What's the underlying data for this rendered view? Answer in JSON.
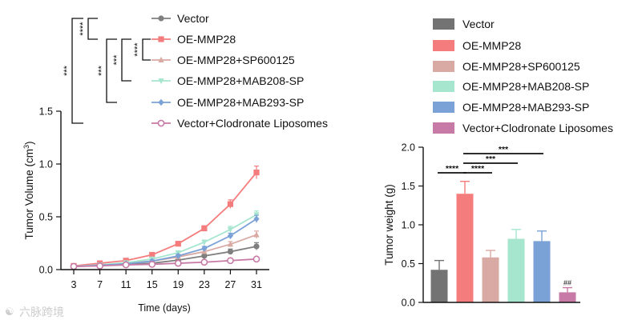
{
  "watermark": "六脉跨境",
  "chart_data": [
    {
      "type": "line",
      "xlabel": "Time (days)",
      "ylabel": "Tumor Volume (cm³)",
      "ylabel_main": "Tumor Volume (cm",
      "ylabel_sup": "3",
      "ylabel_end": ")",
      "x": [
        3,
        7,
        11,
        15,
        19,
        23,
        27,
        31
      ],
      "xticks": [
        "3",
        "7",
        "11",
        "15",
        "19",
        "23",
        "27",
        "31"
      ],
      "ylim": [
        0,
        1.5
      ],
      "yticks": [
        0,
        0.5,
        1.0,
        1.5
      ],
      "yticklabels": [
        "0.0",
        "0.5",
        "1.0",
        "1.5"
      ],
      "legend_position": "top",
      "series": [
        {
          "name": "Vector",
          "color": "#7f7f7f",
          "marker": "circle",
          "values": [
            0.03,
            0.04,
            0.05,
            0.06,
            0.09,
            0.13,
            0.17,
            0.22
          ],
          "errors": [
            0.008,
            0.01,
            0.01,
            0.012,
            0.015,
            0.02,
            0.025,
            0.035
          ]
        },
        {
          "name": "OE-MMP28",
          "color": "#f47c7c",
          "marker": "square",
          "values": [
            0.035,
            0.06,
            0.085,
            0.14,
            0.245,
            0.39,
            0.62,
            0.92
          ],
          "errors": [
            0.008,
            0.01,
            0.012,
            0.015,
            0.02,
            0.025,
            0.04,
            0.06
          ]
        },
        {
          "name": "OE-MMP28+SP600125",
          "color": "#d9aaa3",
          "marker": "triangle-up",
          "values": [
            0.03,
            0.045,
            0.06,
            0.08,
            0.12,
            0.17,
            0.24,
            0.33
          ],
          "errors": [
            0.008,
            0.01,
            0.01,
            0.012,
            0.015,
            0.02,
            0.025,
            0.035
          ]
        },
        {
          "name": "OE-MMP28+MAB208-SP",
          "color": "#a6e6cf",
          "marker": "triangle-down",
          "values": [
            0.03,
            0.045,
            0.065,
            0.1,
            0.16,
            0.26,
            0.38,
            0.52
          ],
          "errors": [
            0.008,
            0.01,
            0.01,
            0.012,
            0.015,
            0.02,
            0.03,
            0.035
          ]
        },
        {
          "name": "OE-MMP28+MAB293-SP",
          "color": "#7ba2d6",
          "marker": "diamond",
          "values": [
            0.03,
            0.04,
            0.055,
            0.08,
            0.13,
            0.2,
            0.32,
            0.48
          ],
          "errors": [
            0.008,
            0.01,
            0.01,
            0.012,
            0.015,
            0.02,
            0.025,
            0.035
          ]
        },
        {
          "name": "Vector+Clodronate Liposomes",
          "color": "#c77aa5",
          "marker": "open-circle",
          "values": [
            0.03,
            0.035,
            0.045,
            0.05,
            0.06,
            0.07,
            0.085,
            0.1
          ],
          "errors": [
            0.006,
            0.008,
            0.008,
            0.01,
            0.01,
            0.012,
            0.015,
            0.02
          ]
        }
      ],
      "significance": [
        "****",
        "****",
        "***",
        "***",
        "***"
      ]
    },
    {
      "type": "bar",
      "ylabel": "Tumor weight (g)",
      "ylim": [
        0,
        2.0
      ],
      "yticks": [
        0,
        0.5,
        1.0,
        1.5,
        2.0
      ],
      "yticklabels": [
        "0.0",
        "0.5",
        "1.0",
        "1.5",
        "2.0"
      ],
      "legend_position": "top",
      "categories": [
        "Vector",
        "OE-MMP28",
        "OE-MMP28+SP600125",
        "OE-MMP28+MAB208-SP",
        "OE-MMP28+MAB293-SP",
        "Vector+Clodronate Liposomes"
      ],
      "values": [
        0.42,
        1.4,
        0.58,
        0.82,
        0.79,
        0.13
      ],
      "errors": [
        0.12,
        0.16,
        0.09,
        0.12,
        0.13,
        0.06
      ],
      "colors": [
        "#737373",
        "#f47c7c",
        "#d9aaa3",
        "#a6e6cf",
        "#7ba2d6",
        "#c77aa5"
      ],
      "significance": [
        {
          "label": "****",
          "from": 0,
          "to": 1
        },
        {
          "label": "****",
          "from": 1,
          "to": 2
        },
        {
          "label": "***",
          "from": 1,
          "to": 3
        },
        {
          "label": "***",
          "from": 1,
          "to": 4
        }
      ],
      "annotation": "##"
    }
  ]
}
